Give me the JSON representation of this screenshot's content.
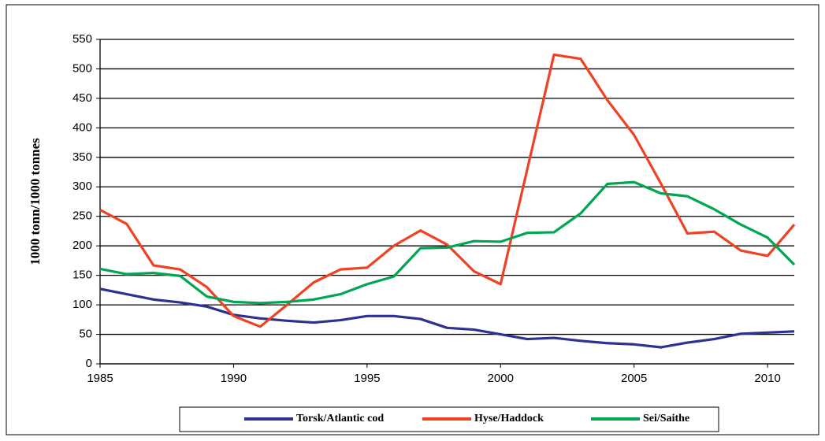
{
  "chart_data": {
    "type": "line",
    "y_label": "1000 tonn/1000 tonnes",
    "x": [
      1985,
      1986,
      1987,
      1988,
      1989,
      1990,
      1991,
      1992,
      1993,
      1994,
      1995,
      1996,
      1997,
      1998,
      1999,
      2000,
      2001,
      2002,
      2003,
      2004,
      2005,
      2006,
      2007,
      2008,
      2009,
      2010,
      2011
    ],
    "series": [
      {
        "name": "Torsk/Atlantic cod",
        "color": "#2e3192",
        "values": [
          127,
          118,
          109,
          104,
          97,
          83,
          77,
          73,
          70,
          74,
          81,
          81,
          76,
          61,
          58,
          50,
          42,
          44,
          39,
          35,
          33,
          28,
          36,
          42,
          51,
          53,
          55
        ]
      },
      {
        "name": "Hyse/Haddock",
        "color": "#ef4123",
        "values": [
          261,
          237,
          167,
          160,
          130,
          81,
          63,
          100,
          138,
          160,
          163,
          200,
          226,
          202,
          157,
          135,
          330,
          524,
          517,
          447,
          388,
          306,
          221,
          224,
          192,
          183,
          236
        ]
      },
      {
        "name": "Sei/Saithe",
        "color": "#00a651",
        "values": [
          161,
          152,
          154,
          149,
          114,
          105,
          103,
          105,
          109,
          118,
          135,
          148,
          196,
          197,
          208,
          207,
          222,
          223,
          255,
          305,
          308,
          289,
          284,
          262,
          236,
          214,
          168
        ]
      }
    ],
    "xlim": [
      1985,
      2011
    ],
    "xticks": [
      1985,
      1990,
      1995,
      2000,
      2005,
      2010
    ],
    "ylim": [
      0,
      550
    ],
    "yticks": [
      0,
      50,
      100,
      150,
      200,
      250,
      300,
      350,
      400,
      450,
      500,
      550
    ],
    "grid": true
  }
}
